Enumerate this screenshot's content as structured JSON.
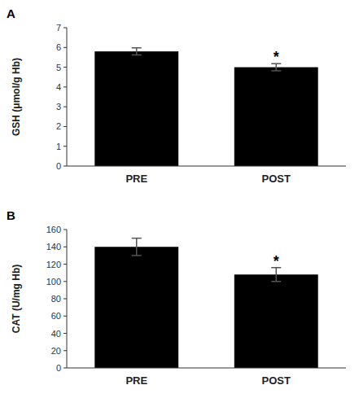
{
  "chart_data": [
    {
      "type": "bar",
      "title": "A",
      "categories": [
        "PRE",
        "POST"
      ],
      "values": [
        5.8,
        5.0
      ],
      "errors": [
        0.18,
        0.18
      ],
      "ylabel": "GSH (μmol/g Hb)",
      "ylim": [
        0,
        7
      ],
      "yticks": [
        0,
        1,
        2,
        3,
        4,
        5,
        6,
        7
      ],
      "color": "#000000",
      "grid": false,
      "annotations": [
        {
          "text": "*",
          "category": "POST"
        }
      ]
    },
    {
      "type": "bar",
      "title": "B",
      "categories": [
        "PRE",
        "POST"
      ],
      "values": [
        140,
        108
      ],
      "errors": [
        10,
        8
      ],
      "ylabel": "CAT (U/mg Hb)",
      "ylim": [
        0,
        160
      ],
      "yticks": [
        0,
        20,
        40,
        60,
        80,
        100,
        120,
        140,
        160
      ],
      "color": "#000000",
      "grid": false,
      "annotations": [
        {
          "text": "*",
          "category": "POST"
        }
      ]
    }
  ]
}
